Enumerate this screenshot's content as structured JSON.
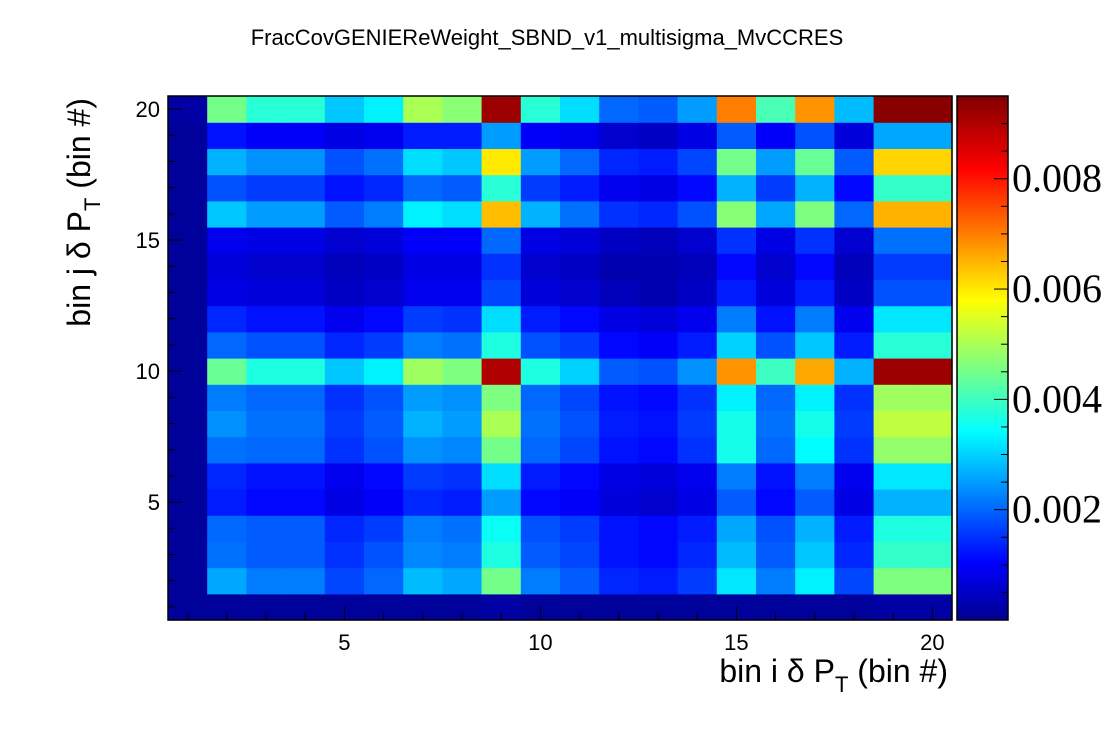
{
  "chart_data": {
    "type": "heatmap",
    "title": "FracCovGENIEReWeight_SBND_v1_multisigma_MvCCRES",
    "xlabel": {
      "main": "bin i δ P",
      "sub": "T",
      "suffix": " (bin #)"
    },
    "ylabel": {
      "main": "bin j δ P",
      "sub": "T",
      "suffix": " (bin #)"
    },
    "xlim": [
      0.5,
      20.5
    ],
    "ylim": [
      0.5,
      20.5
    ],
    "x_ticks": [
      5,
      10,
      15,
      20
    ],
    "y_ticks": [
      5,
      10,
      15,
      20
    ],
    "x_tick_labels": [
      "5",
      "10",
      "15",
      "20"
    ],
    "y_tick_labels": [
      "5",
      "10",
      "15",
      "20"
    ],
    "zlim": [
      0.0,
      0.0095
    ],
    "colorbar_ticks": [
      0.002,
      0.004,
      0.006,
      0.008
    ],
    "colorbar_labels": [
      "0.002",
      "0.004",
      "0.006",
      "0.008"
    ],
    "colormap": "jet",
    "grid": false,
    "matrix_rows_bottom_to_top": [
      [
        0.0001,
        0.0001,
        0.0001,
        0.0001,
        0.0001,
        0.0001,
        0.0001,
        0.0001,
        0.0002,
        0.0001,
        0.0001,
        0.0001,
        0.0001,
        0.0001,
        0.0001,
        0.0001,
        0.0001,
        0.0001,
        0.0002,
        0.0002
      ],
      [
        0.0001,
        0.0026,
        0.0022,
        0.0022,
        0.0017,
        0.002,
        0.0028,
        0.0026,
        0.0045,
        0.0022,
        0.0019,
        0.0014,
        0.0013,
        0.0016,
        0.0032,
        0.0022,
        0.0033,
        0.0017,
        0.0046,
        0.0046
      ],
      [
        0.0001,
        0.0021,
        0.0019,
        0.0019,
        0.0015,
        0.0018,
        0.0023,
        0.0022,
        0.0037,
        0.0019,
        0.0017,
        0.0012,
        0.0011,
        0.0014,
        0.0028,
        0.0019,
        0.0029,
        0.0014,
        0.0039,
        0.0039
      ],
      [
        0.0001,
        0.002,
        0.0019,
        0.0019,
        0.0014,
        0.0016,
        0.0022,
        0.0021,
        0.0035,
        0.0018,
        0.0016,
        0.0012,
        0.0011,
        0.0013,
        0.0026,
        0.0018,
        0.0027,
        0.0013,
        0.0037,
        0.0037
      ],
      [
        0.0001,
        0.0013,
        0.0011,
        0.0011,
        0.0008,
        0.001,
        0.0014,
        0.0013,
        0.0025,
        0.0011,
        0.001,
        0.0007,
        0.0006,
        0.0008,
        0.0019,
        0.0011,
        0.0019,
        0.0008,
        0.0027,
        0.0027
      ],
      [
        0.0001,
        0.0014,
        0.0012,
        0.0012,
        0.0009,
        0.0011,
        0.0016,
        0.0015,
        0.0031,
        0.0013,
        0.0011,
        0.0008,
        0.0007,
        0.0009,
        0.0022,
        0.0012,
        0.0022,
        0.0009,
        0.0032,
        0.0032
      ],
      [
        0.0001,
        0.0021,
        0.002,
        0.002,
        0.0015,
        0.0018,
        0.0024,
        0.0023,
        0.0045,
        0.002,
        0.0017,
        0.0012,
        0.0011,
        0.0015,
        0.0036,
        0.002,
        0.0034,
        0.0015,
        0.0048,
        0.0048
      ],
      [
        0.0001,
        0.0024,
        0.0021,
        0.0021,
        0.0016,
        0.0019,
        0.0027,
        0.0025,
        0.005,
        0.0021,
        0.0018,
        0.0013,
        0.0012,
        0.0016,
        0.0036,
        0.0021,
        0.0036,
        0.0016,
        0.0052,
        0.0052
      ],
      [
        0.0001,
        0.0022,
        0.002,
        0.002,
        0.0015,
        0.0018,
        0.0025,
        0.0024,
        0.0046,
        0.002,
        0.0017,
        0.0012,
        0.0011,
        0.0015,
        0.0033,
        0.002,
        0.0033,
        0.0015,
        0.0049,
        0.0049
      ],
      [
        0.0001,
        0.0044,
        0.0037,
        0.0037,
        0.0029,
        0.0033,
        0.0049,
        0.0046,
        0.009,
        0.0037,
        0.003,
        0.0019,
        0.0018,
        0.0024,
        0.0068,
        0.004,
        0.0066,
        0.0027,
        0.0092,
        0.0092
      ],
      [
        0.0001,
        0.002,
        0.0018,
        0.0018,
        0.0014,
        0.0016,
        0.0022,
        0.0021,
        0.0037,
        0.0018,
        0.0016,
        0.0011,
        0.001,
        0.0013,
        0.003,
        0.0018,
        0.0029,
        0.0013,
        0.0038,
        0.0038
      ],
      [
        0.0001,
        0.0014,
        0.0012,
        0.0012,
        0.0009,
        0.0011,
        0.0016,
        0.0015,
        0.0031,
        0.0013,
        0.0011,
        0.0008,
        0.0007,
        0.0009,
        0.0022,
        0.0012,
        0.0022,
        0.0009,
        0.0032,
        0.0032
      ],
      [
        0.0001,
        0.0008,
        0.0007,
        0.0007,
        0.0005,
        0.0006,
        0.0009,
        0.0009,
        0.0017,
        0.0007,
        0.0006,
        0.0004,
        0.0003,
        0.0005,
        0.0013,
        0.0007,
        0.0013,
        0.0005,
        0.0018,
        0.0018
      ],
      [
        0.0001,
        0.0007,
        0.0006,
        0.0006,
        0.0004,
        0.0005,
        0.0008,
        0.0008,
        0.0015,
        0.0006,
        0.0005,
        0.0003,
        0.0003,
        0.0004,
        0.0011,
        0.0006,
        0.0011,
        0.0004,
        0.0016,
        0.0016
      ],
      [
        0.0001,
        0.0009,
        0.0008,
        0.0008,
        0.0006,
        0.0007,
        0.001,
        0.001,
        0.002,
        0.0008,
        0.0007,
        0.0005,
        0.0004,
        0.0006,
        0.0015,
        0.0008,
        0.0015,
        0.0006,
        0.0021,
        0.0021
      ],
      [
        0.0001,
        0.0029,
        0.0025,
        0.0025,
        0.0019,
        0.0022,
        0.0033,
        0.0031,
        0.0064,
        0.0027,
        0.0021,
        0.0015,
        0.0014,
        0.0018,
        0.0047,
        0.0026,
        0.0046,
        0.002,
        0.0065,
        0.0065
      ],
      [
        0.0001,
        0.0018,
        0.0016,
        0.0016,
        0.0012,
        0.0014,
        0.002,
        0.0019,
        0.0038,
        0.0016,
        0.0013,
        0.0009,
        0.0008,
        0.0011,
        0.0027,
        0.0016,
        0.0027,
        0.0011,
        0.0039,
        0.0039
      ],
      [
        0.0001,
        0.0027,
        0.0024,
        0.0024,
        0.0018,
        0.0021,
        0.0031,
        0.0029,
        0.006,
        0.0025,
        0.002,
        0.0014,
        0.0013,
        0.0017,
        0.0045,
        0.0025,
        0.0044,
        0.0019,
        0.0062,
        0.0062
      ],
      [
        0.0001,
        0.0012,
        0.001,
        0.001,
        0.0008,
        0.0009,
        0.0013,
        0.0013,
        0.0025,
        0.001,
        0.0009,
        0.0006,
        0.0005,
        0.0008,
        0.0019,
        0.001,
        0.0018,
        0.0007,
        0.0026,
        0.0026
      ],
      [
        0.0002,
        0.0045,
        0.0038,
        0.0038,
        0.0029,
        0.0033,
        0.005,
        0.0047,
        0.0092,
        0.0038,
        0.0031,
        0.002,
        0.0019,
        0.0025,
        0.007,
        0.0041,
        0.0068,
        0.0028,
        0.0094,
        0.0094
      ]
    ]
  }
}
